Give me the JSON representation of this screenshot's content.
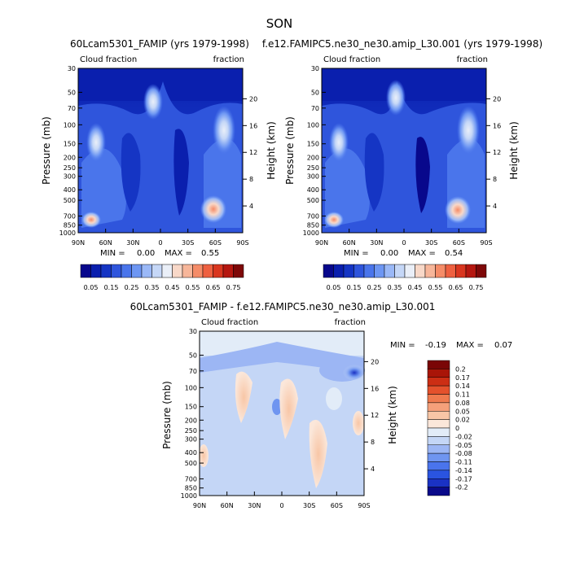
{
  "figure": {
    "season": "SON",
    "diff_title": "60Lcam5301_FAMIP - f.e12.FAMIPC5.ne30_ne30.amip_L30.001"
  },
  "colors": {
    "abs_levels": [
      "#08088c",
      "#0a1fae",
      "#1535c4",
      "#2f55dc",
      "#4a75eb",
      "#6d96f3",
      "#9ab8f7",
      "#c5d7f7",
      "#eaeff8",
      "#f8d8c8",
      "#f7b69a",
      "#f58c68",
      "#ee6040",
      "#d9361f",
      "#b51710",
      "#7e0808"
    ],
    "diff_levels": [
      "#0a0a8a",
      "#1a32c4",
      "#2a54e0",
      "#4a74ec",
      "#6f95f0",
      "#9cb6f4",
      "#c4d6f6",
      "#e2ecf8",
      "#fbe7da",
      "#f8c6a6",
      "#f5a07a",
      "#ef7a4e",
      "#e4512c",
      "#cc2e14",
      "#a91508",
      "#7a0606"
    ]
  },
  "chart_data": [
    {
      "type": "heatmap",
      "id": "panel1",
      "title": "60Lcam5301_FAMIP (yrs 1979-1998)",
      "left_label": "Cloud fraction",
      "right_label": "fraction",
      "xlabel": "",
      "ylabel": "Pressure (mb)",
      "y2label": "Height (km)",
      "x_ticks": [
        "90N",
        "60N",
        "30N",
        "0",
        "30S",
        "60S",
        "90S"
      ],
      "y_ticks": [
        "30",
        "50",
        "70",
        "100",
        "150",
        "200",
        "250",
        "300",
        "400",
        "500",
        "700",
        "850",
        "1000"
      ],
      "y2_ticks": [
        "20",
        "16",
        "12",
        "8",
        "4"
      ],
      "xlim": [
        90,
        -90
      ],
      "ylim": [
        1000,
        30
      ],
      "min_label": "MIN =",
      "min_value": "0.00",
      "max_label": "MAX =",
      "max_value": "0.55",
      "colorbar_labels": [
        "0.05",
        "0.15",
        "0.25",
        "0.35",
        "0.45",
        "0.55",
        "0.65",
        "0.75"
      ]
    },
    {
      "type": "heatmap",
      "id": "panel2",
      "title": "f.e12.FAMIPC5.ne30_ne30.amip_L30.001 (yrs 1979-1998)",
      "left_label": "Cloud fraction",
      "right_label": "fraction",
      "xlabel": "",
      "ylabel": "Pressure (mb)",
      "y2label": "Height (km)",
      "x_ticks": [
        "90N",
        "60N",
        "30N",
        "0",
        "30S",
        "60S",
        "90S"
      ],
      "y_ticks": [
        "30",
        "50",
        "70",
        "100",
        "150",
        "200",
        "250",
        "300",
        "400",
        "500",
        "700",
        "850",
        "1000"
      ],
      "y2_ticks": [
        "20",
        "16",
        "12",
        "8",
        "4"
      ],
      "xlim": [
        90,
        -90
      ],
      "ylim": [
        1000,
        30
      ],
      "min_label": "MIN =",
      "min_value": "0.00",
      "max_label": "MAX =",
      "max_value": "0.54",
      "colorbar_labels": [
        "0.05",
        "0.15",
        "0.25",
        "0.35",
        "0.45",
        "0.55",
        "0.65",
        "0.75"
      ]
    },
    {
      "type": "heatmap",
      "id": "panel3",
      "title": "60Lcam5301_FAMIP - f.e12.FAMIPC5.ne30_ne30.amip_L30.001",
      "left_label": "Cloud fraction",
      "right_label": "fraction",
      "xlabel": "",
      "ylabel": "Pressure (mb)",
      "y2label": "Height (km)",
      "x_ticks": [
        "90N",
        "60N",
        "30N",
        "0",
        "30S",
        "60S",
        "90S"
      ],
      "y_ticks": [
        "30",
        "50",
        "70",
        "100",
        "150",
        "200",
        "250",
        "300",
        "400",
        "500",
        "700",
        "850",
        "1000"
      ],
      "y2_ticks": [
        "20",
        "16",
        "12",
        "8",
        "4"
      ],
      "xlim": [
        90,
        -90
      ],
      "ylim": [
        1000,
        30
      ],
      "min_label": "MIN =",
      "min_value": "-0.19",
      "max_label": "MAX =",
      "max_value": "0.07",
      "colorbar_labels": [
        "0.2",
        "0.17",
        "0.14",
        "0.11",
        "0.08",
        "0.05",
        "0.02",
        "0",
        "-0.02",
        "-0.05",
        "-0.08",
        "-0.11",
        "-0.14",
        "-0.17",
        "-0.2"
      ]
    }
  ]
}
